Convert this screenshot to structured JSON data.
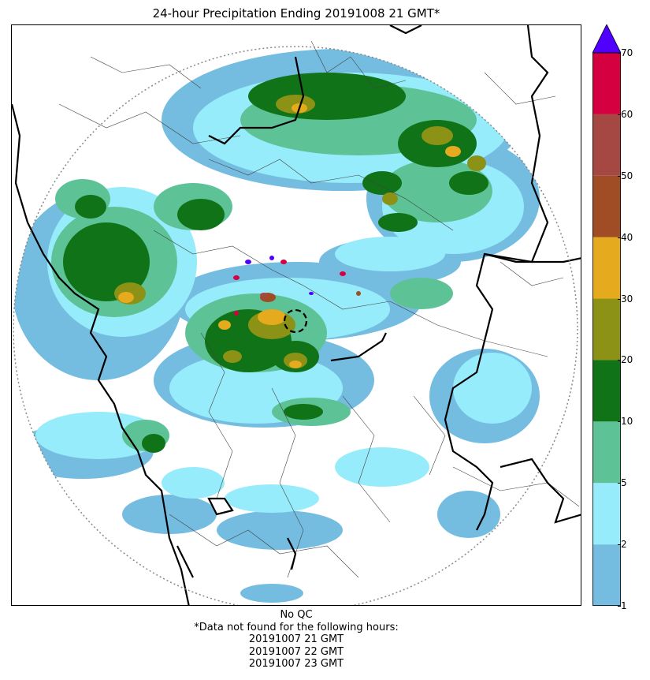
{
  "title": "24-hour Precipitation Ending 20191008 21 GMT*",
  "colorbar": {
    "ticks": [
      "1",
      "2",
      "5",
      "10",
      "20",
      "30",
      "40",
      "50",
      "60",
      "70"
    ],
    "colors": [
      "#74bde0",
      "#97ecfb",
      "#5dc397",
      "#117318",
      "#8b9216",
      "#e5aa1d",
      "#a04d25",
      "#a54844",
      "#d4003f"
    ],
    "overflow_color": "#5000ff"
  },
  "footer": {
    "qc_note": "No QC",
    "missing_note": "*Data not found for the following hours:",
    "missing_hours": [
      "20191007 21 GMT",
      "20191007 22 GMT",
      "20191007 23 GMT"
    ]
  }
}
